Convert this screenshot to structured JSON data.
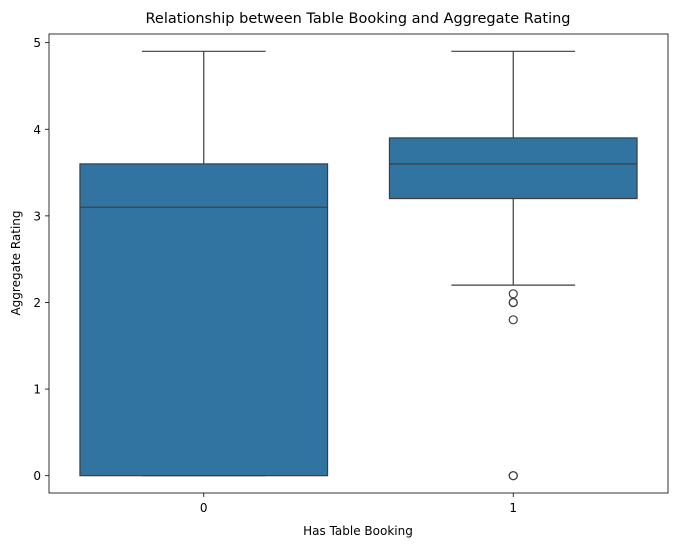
{
  "chart_data": {
    "type": "box",
    "title": "Relationship between Table Booking and Aggregate Rating",
    "xlabel": "Has Table Booking",
    "ylabel": "Aggregate Rating",
    "categories": [
      "0",
      "1"
    ],
    "ylim": [
      -0.2,
      5.1
    ],
    "yticks": [
      0,
      1,
      2,
      3,
      4,
      5
    ],
    "grid": false,
    "color": "#3274a1",
    "edge_color": "#3d3d3d",
    "boxes": [
      {
        "category": "0",
        "whisker_low": 0.0,
        "q1": 0.0,
        "median": 3.1,
        "q3": 3.6,
        "whisker_high": 4.9,
        "outliers": []
      },
      {
        "category": "1",
        "whisker_low": 2.2,
        "q1": 3.2,
        "median": 3.6,
        "q3": 3.9,
        "whisker_high": 4.9,
        "outliers": [
          2.1,
          2.0,
          2.0,
          1.8,
          0.0,
          0.0
        ]
      }
    ]
  }
}
